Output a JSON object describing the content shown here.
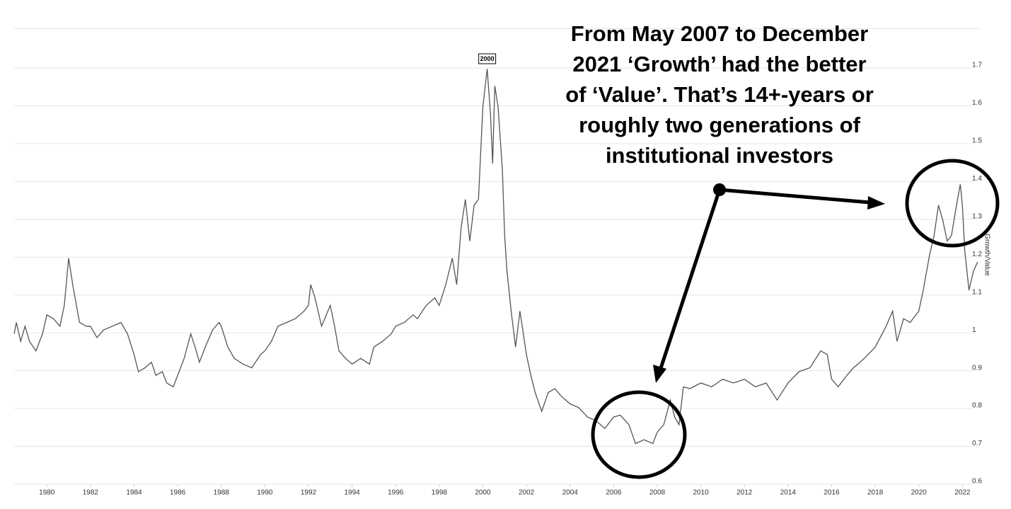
{
  "chart_data": {
    "type": "line",
    "y_axis_label": "Growth/Value",
    "peak_label": "2000",
    "callout_lines": [
      "From May 2007 to December",
      "2021 ‘Growth’ had the better",
      "of ‘Value’. That’s 14+-years or",
      "roughly two generations of",
      "institutional investors"
    ],
    "color": "#555555",
    "x": [
      1978.5,
      1978.6,
      1978.8,
      1979.0,
      1979.2,
      1979.5,
      1979.8,
      1980.0,
      1980.3,
      1980.6,
      1980.8,
      1981.0,
      1981.2,
      1981.5,
      1981.8,
      1982.0,
      1982.3,
      1982.6,
      1983.0,
      1983.4,
      1983.7,
      1984.0,
      1984.2,
      1984.5,
      1984.8,
      1985.0,
      1985.3,
      1985.5,
      1985.8,
      1986.0,
      1986.3,
      1986.6,
      1986.8,
      1987.0,
      1987.3,
      1987.6,
      1987.9,
      1988.0,
      1988.3,
      1988.6,
      1989.0,
      1989.4,
      1989.8,
      1990.0,
      1990.3,
      1990.6,
      1991.0,
      1991.4,
      1991.8,
      1992.0,
      1992.1,
      1992.3,
      1992.6,
      1993.0,
      1993.2,
      1993.4,
      1993.7,
      1994.0,
      1994.4,
      1994.8,
      1995.0,
      1995.4,
      1995.8,
      1996.0,
      1996.4,
      1996.8,
      1997.0,
      1997.4,
      1997.8,
      1998.0,
      1998.3,
      1998.6,
      1998.8,
      1999.0,
      1999.2,
      1999.4,
      1999.6,
      1999.8,
      2000.0,
      2000.2,
      2000.35,
      2000.45,
      2000.55,
      2000.7,
      2000.9,
      2001.0,
      2001.1,
      2001.3,
      2001.5,
      2001.7,
      2002.0,
      2002.2,
      2002.4,
      2002.7,
      2003.0,
      2003.3,
      2003.6,
      2004.0,
      2004.4,
      2004.8,
      2005.2,
      2005.6,
      2006.0,
      2006.3,
      2006.7,
      2007.0,
      2007.4,
      2007.8,
      2008.0,
      2008.3,
      2008.6,
      2008.8,
      2009.0,
      2009.2,
      2009.5,
      2010.0,
      2010.5,
      2011.0,
      2011.5,
      2012.0,
      2012.5,
      2013.0,
      2013.5,
      2014.0,
      2014.5,
      2015.0,
      2015.5,
      2015.8,
      2016.0,
      2016.3,
      2016.7,
      2017.0,
      2017.5,
      2018.0,
      2018.5,
      2018.8,
      2019.0,
      2019.3,
      2019.6,
      2020.0,
      2020.2,
      2020.5,
      2020.7,
      2020.9,
      2021.1,
      2021.3,
      2021.5,
      2021.7,
      2021.9,
      2022.0,
      2022.1,
      2022.3,
      2022.5,
      2022.7
    ],
    "values": [
      0.99,
      1.02,
      0.97,
      1.01,
      0.97,
      0.945,
      0.99,
      1.04,
      1.03,
      1.01,
      1.065,
      1.19,
      1.115,
      1.02,
      1.01,
      1.01,
      0.98,
      1.0,
      1.01,
      1.02,
      0.99,
      0.935,
      0.89,
      0.9,
      0.915,
      0.88,
      0.89,
      0.86,
      0.85,
      0.88,
      0.925,
      0.99,
      0.955,
      0.915,
      0.96,
      1.0,
      1.02,
      1.01,
      0.955,
      0.925,
      0.91,
      0.9,
      0.935,
      0.945,
      0.97,
      1.01,
      1.02,
      1.03,
      1.05,
      1.065,
      1.12,
      1.085,
      1.01,
      1.065,
      1.01,
      0.945,
      0.925,
      0.91,
      0.925,
      0.91,
      0.955,
      0.97,
      0.99,
      1.01,
      1.02,
      1.04,
      1.03,
      1.065,
      1.085,
      1.065,
      1.12,
      1.19,
      1.12,
      1.27,
      1.345,
      1.235,
      1.33,
      1.345,
      1.59,
      1.69,
      1.57,
      1.44,
      1.645,
      1.59,
      1.42,
      1.25,
      1.16,
      1.05,
      0.955,
      1.05,
      0.935,
      0.88,
      0.835,
      0.785,
      0.835,
      0.845,
      0.825,
      0.805,
      0.795,
      0.77,
      0.76,
      0.74,
      0.77,
      0.775,
      0.75,
      0.7,
      0.71,
      0.7,
      0.73,
      0.75,
      0.815,
      0.77,
      0.75,
      0.85,
      0.845,
      0.86,
      0.85,
      0.87,
      0.86,
      0.87,
      0.85,
      0.86,
      0.815,
      0.86,
      0.89,
      0.9,
      0.945,
      0.935,
      0.87,
      0.85,
      0.88,
      0.9,
      0.925,
      0.955,
      1.01,
      1.05,
      0.97,
      1.03,
      1.02,
      1.05,
      1.105,
      1.2,
      1.25,
      1.33,
      1.29,
      1.235,
      1.25,
      1.32,
      1.385,
      1.33,
      1.215,
      1.105,
      1.155,
      1.18
    ],
    "xlim": [
      1978.5,
      2022.8
    ],
    "xticks": [
      1980,
      1982,
      1984,
      1986,
      1988,
      1990,
      1992,
      1994,
      1996,
      1998,
      2000,
      2002,
      2004,
      2006,
      2008,
      2010,
      2012,
      2014,
      2016,
      2018,
      2020,
      2022
    ],
    "ylim": [
      0.6,
      1.8
    ],
    "yticks": [
      0.6,
      0.7,
      0.8,
      0.9,
      1,
      1.1,
      1.2,
      1.3,
      1.4,
      1.5,
      1.6,
      1.7
    ],
    "grid": true
  }
}
